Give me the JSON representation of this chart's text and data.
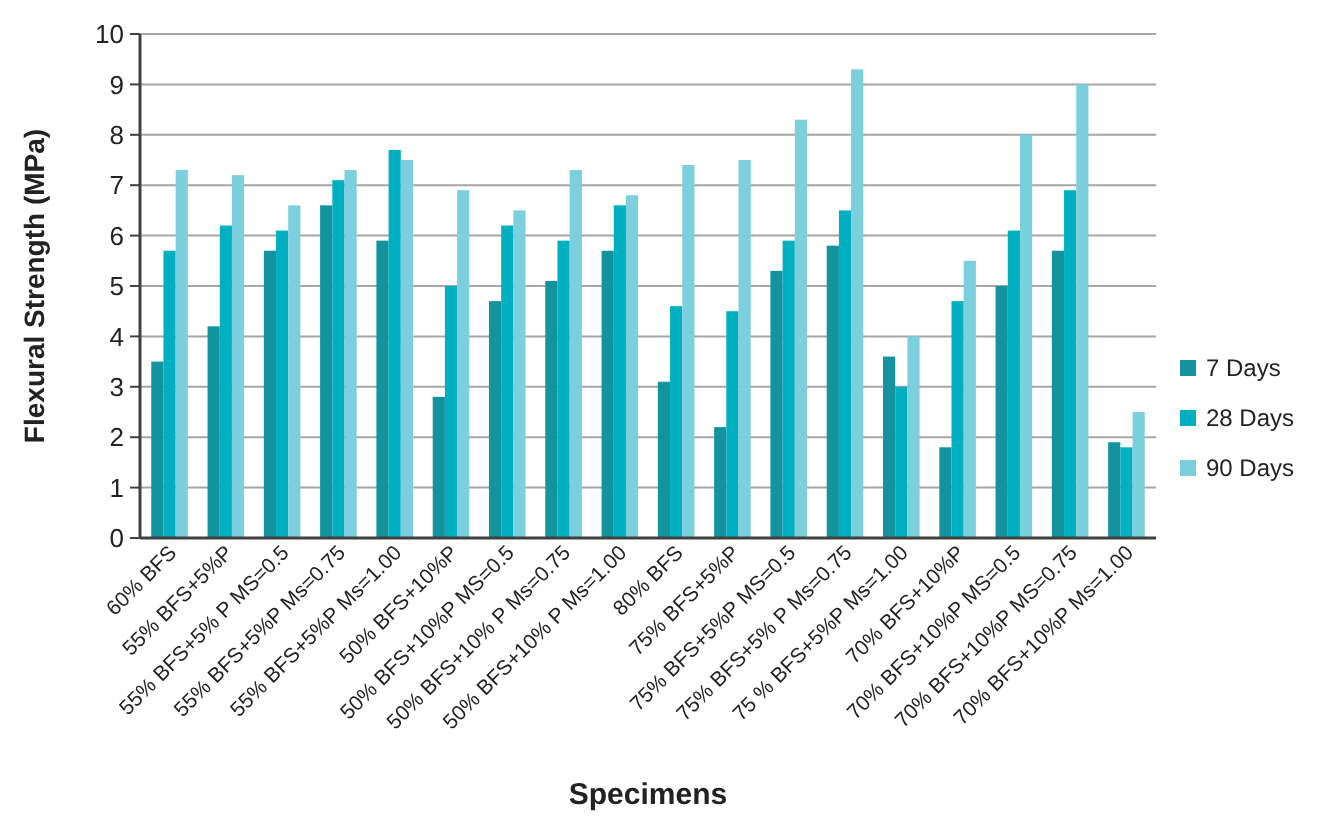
{
  "chart_data": {
    "type": "bar",
    "xlabel": "Specimens",
    "ylabel": "Flexural Strength (MPa)",
    "categories": [
      "60% BFS",
      "55% BFS+5%P",
      "55% BFS+5% P MS=0.5",
      "55% BFS+5%P Ms=0.75",
      "55% BFS+5%P Ms=1.00",
      "50% BFS+10%P",
      "50% BFS+10%P MS=0.5",
      "50% BFS+10% P Ms=0.75",
      "50% BFS+10% P Ms=1.00",
      "80% BFS",
      "75% BFS+5%P",
      "75% BFS+5%P MS=0.5",
      "75% BFS+5% P Ms=0.75",
      "75 % BFS+5%P Ms=1.00",
      "70% BFS+10%P",
      "70% BFS+10%P MS=0.5",
      "70% BFS+10%P MS=0.75",
      "70% BFS+10%P Ms=1.00"
    ],
    "series": [
      {
        "name": "7 Days",
        "color": "#12939e",
        "values": [
          3.5,
          4.2,
          5.7,
          6.6,
          5.9,
          2.8,
          4.7,
          5.1,
          5.7,
          3.1,
          2.2,
          5.3,
          5.8,
          3.6,
          1.8,
          5.0,
          5.7,
          1.9
        ]
      },
      {
        "name": "28 Days",
        "color": "#00b0c0",
        "values": [
          5.7,
          6.2,
          6.1,
          7.1,
          7.7,
          5.0,
          6.2,
          5.9,
          6.6,
          4.6,
          4.5,
          5.9,
          6.5,
          3.0,
          4.7,
          6.1,
          6.9,
          1.8
        ]
      },
      {
        "name": "90 Days",
        "color": "#7ccfdc",
        "values": [
          7.3,
          7.2,
          6.6,
          7.3,
          7.5,
          6.9,
          6.5,
          7.3,
          6.8,
          7.4,
          7.5,
          8.3,
          9.3,
          4.0,
          5.5,
          8.0,
          9.0,
          2.5
        ]
      }
    ],
    "ylim": [
      0,
      10
    ],
    "yticks": [
      0,
      1,
      2,
      3,
      4,
      5,
      6,
      7,
      8,
      9,
      10
    ],
    "grid": "y",
    "legend": "right"
  }
}
